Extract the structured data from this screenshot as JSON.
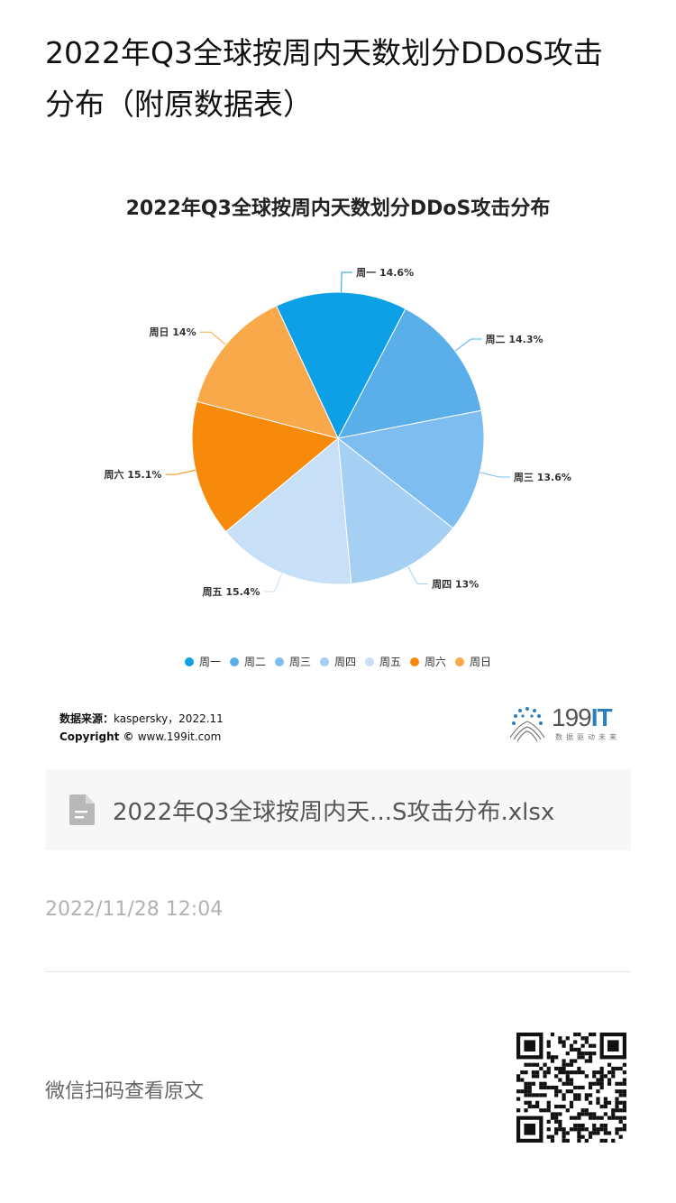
{
  "page": {
    "title": "2022年Q3全球按周内天数划分DDoS攻击分布（附原数据表）"
  },
  "chart_data": {
    "type": "pie",
    "title": "2022年Q3全球按周内天数划分DDoS攻击分布",
    "categories": [
      "周一",
      "周二",
      "周三",
      "周四",
      "周五",
      "周六",
      "周日"
    ],
    "values": [
      14.6,
      14.3,
      13.6,
      13,
      15.4,
      15.1,
      14
    ],
    "labels": [
      "周一 14.6%",
      "周二 14.3%",
      "周三 13.6%",
      "周四 13%",
      "周五 15.4%",
      "周六 15.1%",
      "周日 14%"
    ],
    "colors": [
      "#0ea0e6",
      "#5aaeea",
      "#7dbdf0",
      "#a5cff3",
      "#c8e0f7",
      "#f78a0a",
      "#f9a84a"
    ],
    "legend_position": "bottom"
  },
  "source": {
    "label": "数据来源：",
    "value": "kaspersky，2022.11",
    "copyright_label": "Copyright ©",
    "copyright_value": "www.199it.com"
  },
  "logo": {
    "text_prefix": "199",
    "text_suffix": "IT",
    "subtitle": "数据驱动未来"
  },
  "attachment": {
    "icon": "document-icon",
    "file_name": "2022年Q3全球按周内天...S攻击分布.xlsx"
  },
  "meta": {
    "timestamp": "2022/11/28 12:04"
  },
  "footer": {
    "wechat_label": "微信扫码查看原文"
  }
}
